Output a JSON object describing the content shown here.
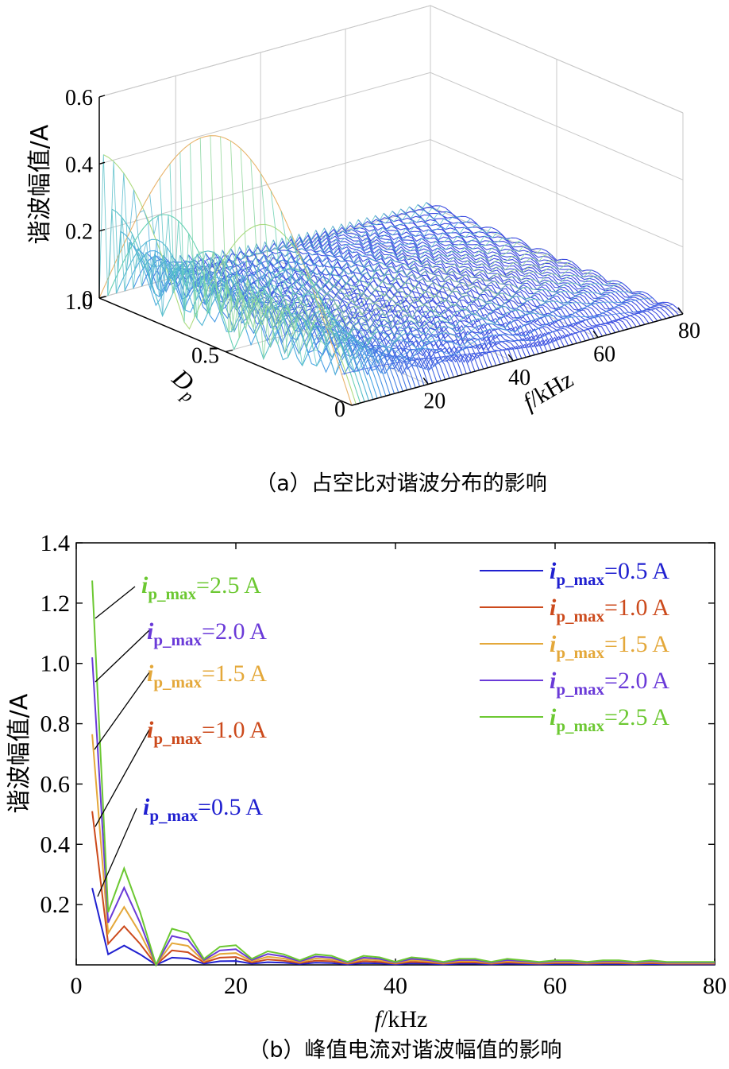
{
  "chart_data": [
    {
      "type": "surface",
      "zlabel": "谐波幅值/A",
      "xlabel": "f/kHz",
      "ylabel": "Dp",
      "caption": "（a）占空比对谐波分布的影响",
      "x_ticks": [
        "20",
        "40",
        "60",
        "80"
      ],
      "y_ticks": [
        "0",
        "0.5",
        "1.0"
      ],
      "z_ticks": [
        "0",
        "0.2",
        "0.4",
        "0.6"
      ],
      "xlim": [
        2,
        80
      ],
      "ylim": [
        0,
        1
      ],
      "zlim": [
        0,
        0.6
      ],
      "peak_current": 1.0,
      "grid": true,
      "colormap": [
        "#3b3fe0",
        "#4aa6e6",
        "#63d0b8",
        "#c7df6b",
        "#e9b36a"
      ]
    },
    {
      "type": "line",
      "title": "",
      "xlabel": "f/kHz",
      "ylabel": "谐波幅值/A",
      "caption": "（b）峰值电流对谐波幅值的影响",
      "xlim": [
        0,
        80
      ],
      "ylim": [
        0,
        1.4
      ],
      "x_ticks": [
        "0",
        "20",
        "40",
        "60",
        "80"
      ],
      "y_ticks": [
        "0.2",
        "0.4",
        "0.6",
        "0.8",
        "1.0",
        "1.2",
        "1.4"
      ],
      "x": [
        2,
        4,
        6,
        8,
        10,
        12,
        14,
        16,
        18,
        20,
        22,
        24,
        26,
        28,
        30,
        32,
        34,
        36,
        38,
        40,
        42,
        44,
        46,
        48,
        50,
        52,
        54,
        56,
        58,
        60,
        62,
        64,
        66,
        68,
        70,
        72,
        74,
        76,
        78,
        80
      ],
      "base_values": [
        0.255,
        0.035,
        0.064,
        0.035,
        0.0,
        0.024,
        0.021,
        0.004,
        0.012,
        0.013,
        0.004,
        0.009,
        0.007,
        0.003,
        0.007,
        0.006,
        0.002,
        0.006,
        0.005,
        0.002,
        0.005,
        0.004,
        0.002,
        0.004,
        0.004,
        0.002,
        0.004,
        0.003,
        0.002,
        0.003,
        0.003,
        0.002,
        0.003,
        0.003,
        0.002,
        0.003,
        0.002,
        0.002,
        0.002,
        0.002
      ],
      "series": [
        {
          "name": "i_p_max=0.5 A",
          "sub": "p_max",
          "value_label": "=0.5 A",
          "scale": 1.0,
          "color": "#2020d0"
        },
        {
          "name": "i_p_max=1.0 A",
          "sub": "p_max",
          "value_label": "=1.0 A",
          "scale": 2.0,
          "color": "#cc4a1c"
        },
        {
          "name": "i_p_max=1.5 A",
          "sub": "p_max",
          "value_label": "=1.5 A",
          "scale": 3.0,
          "color": "#e4a83a"
        },
        {
          "name": "i_p_max=2.0 A",
          "sub": "p_max",
          "value_label": "=2.0 A",
          "scale": 4.0,
          "color": "#6a3ad8"
        },
        {
          "name": "i_p_max=2.5 A",
          "sub": "p_max",
          "value_label": "=2.5 A",
          "scale": 5.0,
          "color": "#6cc832"
        }
      ],
      "legend_position": "top-right",
      "annotations": [
        "i_p_max=2.5 A",
        "i_p_max=2.0 A",
        "i_p_max=1.5 A",
        "i_p_max=1.0 A",
        "i_p_max=0.5 A"
      ]
    }
  ]
}
